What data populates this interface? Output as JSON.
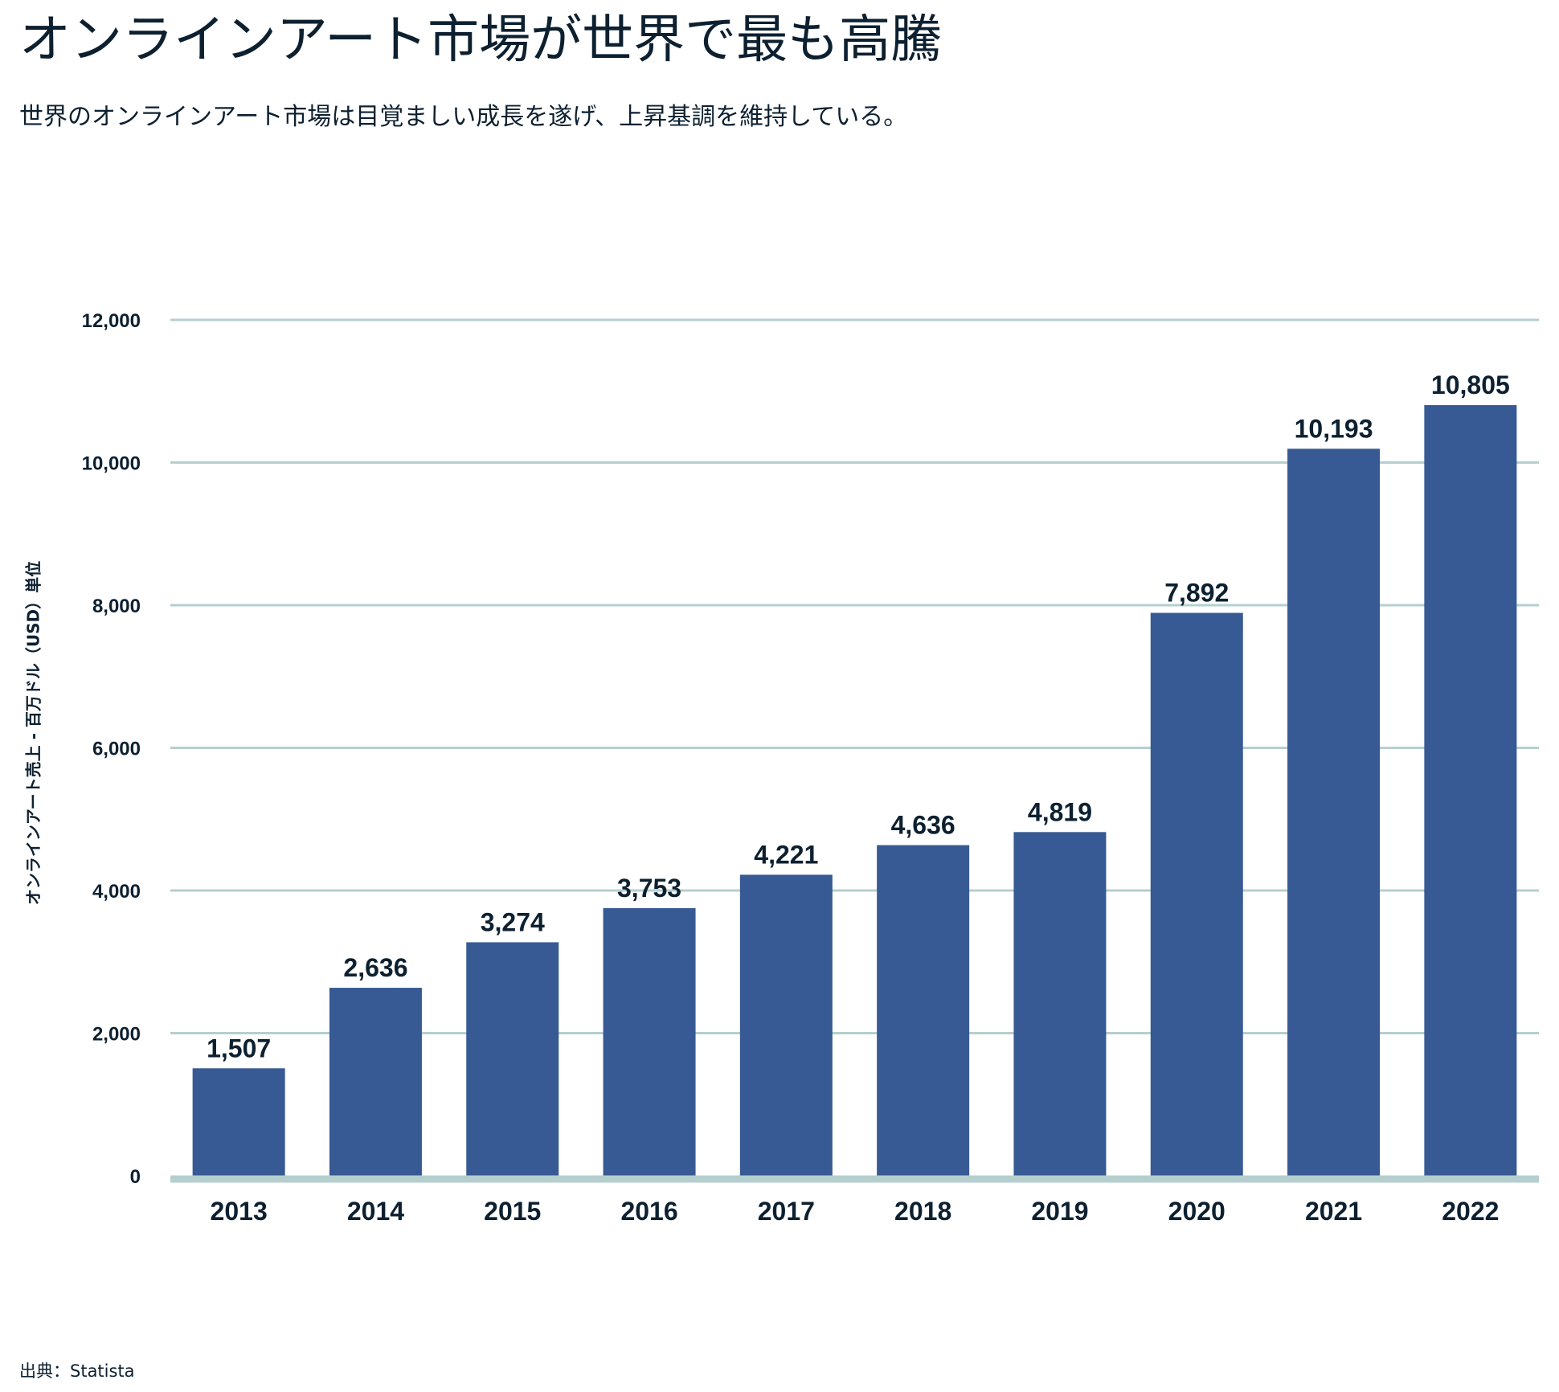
{
  "title": "オンラインアート市場が世界で最も高騰",
  "subtitle": "世界のオンラインアート市場は目覚ましい成長を遂げ、上昇基調を維持している。",
  "source": "出典：Statista",
  "chart_data": {
    "type": "bar",
    "title": "オンラインアート市場が世界で最も高騰",
    "subtitle": "世界のオンラインアート市場は目覚ましい成長を遂げ、上昇基調を維持している。",
    "xlabel": "",
    "ylabel": "オンラインアート売上 - 百万ドル（USD）単位",
    "categories": [
      "2013",
      "2014",
      "2015",
      "2016",
      "2017",
      "2018",
      "2019",
      "2020",
      "2021",
      "2022"
    ],
    "values": [
      1507,
      2636,
      3274,
      3753,
      4221,
      4636,
      4819,
      7892,
      10193,
      10805
    ],
    "value_labels": [
      "1,507",
      "2,636",
      "3,274",
      "3,753",
      "4,221",
      "4,636",
      "4,819",
      "7,892",
      "10,193",
      "10,805"
    ],
    "ylim": [
      0,
      12000
    ],
    "yticks": [
      0,
      2000,
      4000,
      6000,
      8000,
      10000,
      12000
    ],
    "ytick_labels": [
      "0",
      "2,000",
      "4,000",
      "6,000",
      "8,000",
      "10,000",
      "12,000"
    ],
    "grid": true,
    "legend": "none",
    "colors": {
      "bar": "#375a94",
      "grid": "#b5cfcf",
      "text": "#0d2030"
    }
  }
}
